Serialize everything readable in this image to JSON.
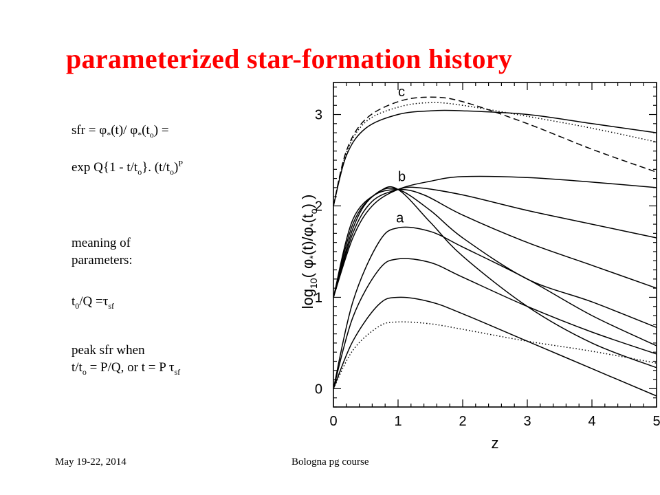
{
  "slide": {
    "title": "parameterized star-formation history",
    "footer_left": "May 19-22, 2014",
    "footer_center": "Bologna pg course"
  },
  "notes": {
    "line1_a": "sfr  =  ",
    "line1_phi1": "φ",
    "line1_star1": "*",
    "line1_b": "(t)/ ",
    "line1_phi2": "φ",
    "line1_star2": "*",
    "line1_c": "(t",
    "line1_sub": "o",
    "line1_d": ")  =",
    "line2_a": "exp Q{1 - t/t",
    "line2_sub1": "o",
    "line2_b": "}. (t/t",
    "line2_sub2": "o",
    "line2_c": ")",
    "line2_sup": "P",
    "line3": " meaning of",
    "line4": "parameters:",
    "line5_a": "t",
    "line5_sub1": "0",
    "line5_b": "/Q =",
    "line5_tau": "τ",
    "line5_sub2": "sf",
    "line6": " peak sfr when",
    "line7_a": "t/t",
    "line7_sub1": "o",
    "line7_b": " = P/Q, or  t = P  ",
    "line7_tau": "τ",
    "line7_sub2": "sf"
  },
  "chart_data": {
    "type": "line",
    "xlabel": "z",
    "ylabel_parts": {
      "log": "log",
      "sub": "10",
      "open": "( ",
      "phi1": "φ",
      "star1": "*",
      "mid": "(t)/",
      "phi2": "φ",
      "star2": "*",
      "close_a": "(t",
      "close_sub": "o",
      "close_b": ") )"
    },
    "xlim": [
      0,
      5
    ],
    "ylim": [
      -0.2,
      3.35
    ],
    "xticks": [
      "0",
      "1",
      "2",
      "3",
      "4",
      "5"
    ],
    "yticks": [
      "0",
      "1",
      "2",
      "3"
    ],
    "curve_labels": [
      "a",
      "b",
      "c"
    ],
    "series": [
      {
        "style": "solid",
        "points": [
          [
            0,
            2.0
          ],
          [
            0.2,
            2.55
          ],
          [
            0.5,
            2.85
          ],
          [
            1.0,
            3.0
          ],
          [
            1.5,
            3.04
          ],
          [
            2.0,
            3.04
          ],
          [
            3.0,
            3.0
          ],
          [
            4.0,
            2.9
          ],
          [
            5.0,
            2.8
          ]
        ]
      },
      {
        "style": "dashed",
        "points": [
          [
            0,
            2.0
          ],
          [
            0.2,
            2.6
          ],
          [
            0.5,
            2.95
          ],
          [
            1.0,
            3.14
          ],
          [
            1.5,
            3.19
          ],
          [
            2.0,
            3.14
          ],
          [
            3.0,
            2.9
          ],
          [
            4.0,
            2.62
          ],
          [
            5.0,
            2.37
          ]
        ]
      },
      {
        "style": "dotted",
        "points": [
          [
            0,
            2.0
          ],
          [
            0.2,
            2.58
          ],
          [
            0.5,
            2.92
          ],
          [
            1.0,
            3.08
          ],
          [
            1.5,
            3.13
          ],
          [
            2.0,
            3.1
          ],
          [
            3.0,
            2.98
          ],
          [
            4.0,
            2.85
          ],
          [
            5.0,
            2.7
          ]
        ]
      },
      {
        "style": "solid",
        "points": [
          [
            0,
            1.0
          ],
          [
            0.3,
            1.65
          ],
          [
            0.6,
            2.0
          ],
          [
            1.0,
            2.18
          ],
          [
            1.5,
            2.27
          ],
          [
            2.0,
            2.32
          ],
          [
            3.0,
            2.31
          ],
          [
            4.0,
            2.26
          ],
          [
            5.0,
            2.2
          ]
        ]
      },
      {
        "style": "solid",
        "points": [
          [
            0,
            1.0
          ],
          [
            0.3,
            1.7
          ],
          [
            0.6,
            2.05
          ],
          [
            1.0,
            2.18
          ],
          [
            1.3,
            2.2
          ],
          [
            2.0,
            2.12
          ],
          [
            3.0,
            1.95
          ],
          [
            4.0,
            1.8
          ],
          [
            5.0,
            1.65
          ]
        ]
      },
      {
        "style": "solid",
        "points": [
          [
            0,
            1.0
          ],
          [
            0.3,
            1.75
          ],
          [
            0.6,
            2.1
          ],
          [
            1.0,
            2.18
          ],
          [
            1.4,
            2.12
          ],
          [
            2.0,
            1.9
          ],
          [
            3.0,
            1.6
          ],
          [
            4.0,
            1.35
          ],
          [
            5.0,
            1.1
          ]
        ]
      },
      {
        "style": "solid",
        "points": [
          [
            0,
            1.0
          ],
          [
            0.3,
            1.8
          ],
          [
            0.65,
            2.13
          ],
          [
            1.0,
            2.18
          ],
          [
            1.5,
            1.95
          ],
          [
            2.0,
            1.65
          ],
          [
            3.0,
            1.2
          ],
          [
            4.0,
            0.95
          ],
          [
            5.0,
            0.67
          ]
        ]
      },
      {
        "style": "solid",
        "points": [
          [
            0,
            1.0
          ],
          [
            0.3,
            1.85
          ],
          [
            0.7,
            2.15
          ],
          [
            1.0,
            2.18
          ],
          [
            1.5,
            1.82
          ],
          [
            2.0,
            1.45
          ],
          [
            3.0,
            0.9
          ],
          [
            4.0,
            0.5
          ],
          [
            5.0,
            0.23
          ]
        ]
      },
      {
        "style": "solid",
        "points": [
          [
            0,
            0.0
          ],
          [
            0.3,
            0.95
          ],
          [
            0.7,
            1.6
          ],
          [
            1.0,
            1.76
          ],
          [
            1.5,
            1.72
          ],
          [
            2.0,
            1.55
          ],
          [
            3.0,
            1.2
          ],
          [
            4.0,
            0.8
          ],
          [
            5.0,
            0.47
          ]
        ]
      },
      {
        "style": "solid",
        "points": [
          [
            0,
            0.0
          ],
          [
            0.3,
            0.78
          ],
          [
            0.7,
            1.3
          ],
          [
            1.0,
            1.42
          ],
          [
            1.5,
            1.38
          ],
          [
            2.0,
            1.22
          ],
          [
            3.0,
            0.9
          ],
          [
            4.0,
            0.62
          ],
          [
            5.0,
            0.38
          ]
        ]
      },
      {
        "style": "solid",
        "points": [
          [
            0,
            0.0
          ],
          [
            0.3,
            0.52
          ],
          [
            0.7,
            0.92
          ],
          [
            1.0,
            1.0
          ],
          [
            1.5,
            0.95
          ],
          [
            2.0,
            0.82
          ],
          [
            3.0,
            0.52
          ],
          [
            4.0,
            0.22
          ],
          [
            5.0,
            -0.08
          ]
        ]
      },
      {
        "style": "dotted",
        "points": [
          [
            0,
            0.0
          ],
          [
            0.3,
            0.42
          ],
          [
            0.7,
            0.68
          ],
          [
            1.0,
            0.73
          ],
          [
            1.5,
            0.71
          ],
          [
            2.0,
            0.65
          ],
          [
            3.0,
            0.52
          ],
          [
            4.0,
            0.41
          ],
          [
            5.0,
            0.28
          ]
        ]
      }
    ],
    "colors": {
      "title": "#ff0000",
      "ink": "#000000"
    }
  }
}
